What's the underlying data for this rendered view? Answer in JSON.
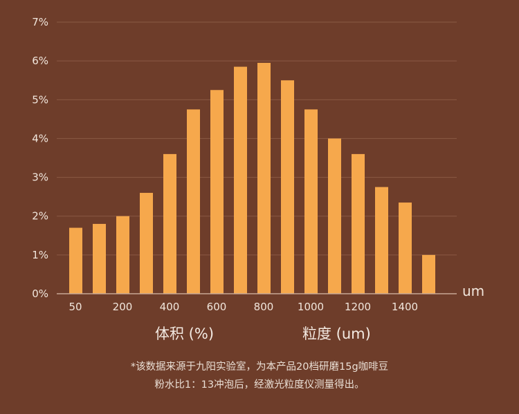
{
  "chart_data": {
    "type": "bar",
    "y_unit": "%",
    "x_unit": "um",
    "ylim": [
      0,
      7
    ],
    "y_ticks": [
      "0%",
      "1%",
      "2%",
      "3%",
      "4%",
      "5%",
      "6%",
      "7%"
    ],
    "x_tick_labels": [
      "50",
      "200",
      "400",
      "600",
      "800",
      "1000",
      "1200",
      "1400"
    ],
    "values": [
      1.7,
      1.8,
      2.0,
      2.6,
      3.6,
      4.75,
      5.25,
      5.85,
      5.95,
      5.5,
      4.75,
      4.0,
      3.6,
      2.75,
      2.35,
      1.0
    ],
    "grid": true
  },
  "labels": {
    "volume": "体积 (%)",
    "size": "粒度 (um)"
  },
  "footnote": {
    "line1": "*该数据来源于九阳实验室，为本产品20档研磨15g咖啡豆",
    "line2": "粉水比1：13冲泡后，经激光粒度仪测量得出。"
  }
}
